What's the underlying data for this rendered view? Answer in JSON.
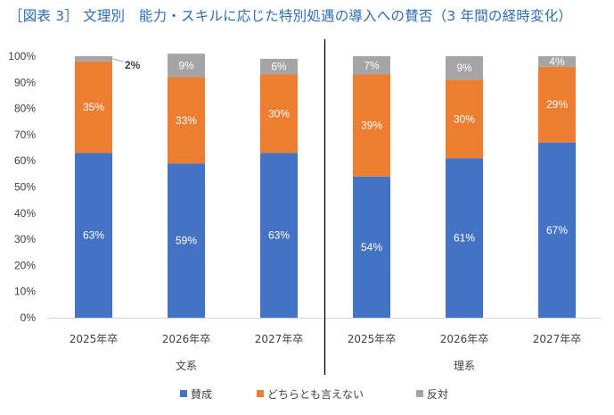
{
  "title": "［図表 3］ 文理別　能力・スキルに応じた特別処遇の導入への賛否（3 年間の経時変化）",
  "chart_data": {
    "type": "bar",
    "stacked": true,
    "y_ticks": [
      "0%",
      "10%",
      "20%",
      "30%",
      "40%",
      "50%",
      "60%",
      "70%",
      "80%",
      "90%",
      "100%"
    ],
    "ylim": [
      0,
      100
    ],
    "groups": [
      {
        "name": "文系",
        "categories": [
          "2025年卒",
          "2026年卒",
          "2027年卒"
        ]
      },
      {
        "name": "理系",
        "categories": [
          "2025年卒",
          "2026年卒",
          "2027年卒"
        ]
      }
    ],
    "series": [
      {
        "name": "賛成",
        "color": "#4472c4",
        "values": [
          63,
          59,
          63,
          54,
          61,
          67
        ],
        "labels": [
          "63%",
          "59%",
          "63%",
          "54%",
          "61%",
          "67%"
        ]
      },
      {
        "name": "どちらとも言えない",
        "color": "#ed7d31",
        "values": [
          35,
          33,
          30,
          39,
          30,
          29
        ],
        "labels": [
          "35%",
          "33%",
          "30%",
          "39%",
          "30%",
          "29%"
        ]
      },
      {
        "name": "反対",
        "color": "#a5a5a5",
        "values": [
          2,
          9,
          6,
          7,
          9,
          4
        ],
        "labels": [
          "2%",
          "9%",
          "6%",
          "7%",
          "9%",
          "4%"
        ]
      }
    ],
    "legend_position": "bottom",
    "grid": false
  }
}
